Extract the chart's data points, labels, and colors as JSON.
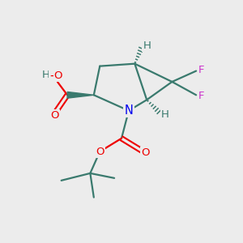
{
  "bg_color": "#ececec",
  "atom_colors": {
    "C": "#3a7a6e",
    "H": "#3a7a6e",
    "N": "#0000ee",
    "O": "#ee0000",
    "F": "#cc33cc"
  },
  "bond_color": "#3a7a6e",
  "figsize": [
    3.0,
    3.0
  ],
  "dpi": 100,
  "xlim": [
    0,
    10
  ],
  "ylim": [
    0,
    10
  ]
}
